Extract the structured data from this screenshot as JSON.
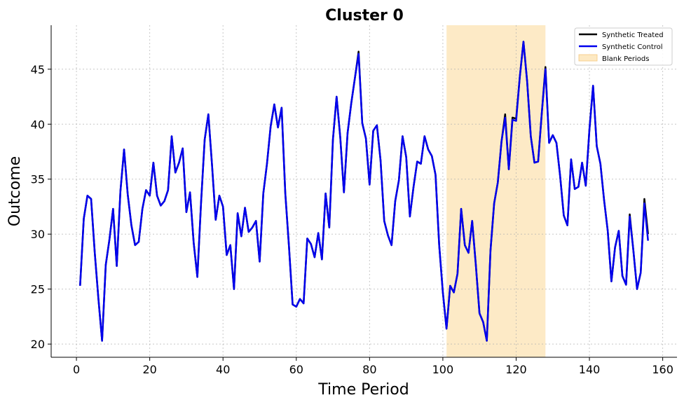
{
  "chart_data": {
    "type": "line",
    "title": "Cluster 0",
    "xlabel": "Time Period",
    "ylabel": "Outcome",
    "xlim": [
      -6.9,
      163.9
    ],
    "ylim": [
      18.8,
      49.0
    ],
    "xticks": [
      0,
      20,
      40,
      60,
      80,
      100,
      120,
      140,
      160
    ],
    "yticks": [
      20,
      25,
      30,
      35,
      40,
      45
    ],
    "grid": true,
    "legend_position": "top-right",
    "shaded_region": {
      "label": "Blank Periods",
      "x_start": 101,
      "x_end": 128,
      "color": "#fde9c3"
    },
    "x": [
      1,
      2,
      3,
      4,
      5,
      6,
      7,
      8,
      9,
      10,
      11,
      12,
      13,
      14,
      15,
      16,
      17,
      18,
      19,
      20,
      21,
      22,
      23,
      24,
      25,
      26,
      27,
      28,
      29,
      30,
      31,
      32,
      33,
      34,
      35,
      36,
      37,
      38,
      39,
      40,
      41,
      42,
      43,
      44,
      45,
      46,
      47,
      48,
      49,
      50,
      51,
      52,
      53,
      54,
      55,
      56,
      57,
      58,
      59,
      60,
      61,
      62,
      63,
      64,
      65,
      66,
      67,
      68,
      69,
      70,
      71,
      72,
      73,
      74,
      75,
      76,
      77,
      78,
      79,
      80,
      81,
      82,
      83,
      84,
      85,
      86,
      87,
      88,
      89,
      90,
      91,
      92,
      93,
      94,
      95,
      96,
      97,
      98,
      99,
      100,
      101,
      102,
      103,
      104,
      105,
      106,
      107,
      108,
      109,
      110,
      111,
      112,
      113,
      114,
      115,
      116,
      117,
      118,
      119,
      120,
      121,
      122,
      123,
      124,
      125,
      126,
      127,
      128,
      129,
      130,
      131,
      132,
      133,
      134,
      135,
      136,
      137,
      138,
      139,
      140,
      141,
      142,
      143,
      144,
      145,
      146,
      147,
      148,
      149,
      150,
      151,
      152,
      153,
      154,
      155,
      156
    ],
    "series": [
      {
        "name": "Synthetic Treated",
        "color": "#000000",
        "values": [
          25.3,
          31.4,
          33.5,
          33.2,
          28.3,
          24.1,
          20.3,
          27.2,
          29.5,
          32.3,
          27.1,
          33.9,
          37.7,
          33.6,
          30.8,
          29.0,
          29.3,
          32.3,
          34.0,
          33.5,
          36.5,
          33.5,
          32.6,
          33.0,
          34.0,
          38.9,
          35.6,
          36.5,
          37.8,
          32.0,
          33.8,
          29.2,
          26.1,
          32.8,
          38.6,
          40.9,
          36.3,
          31.3,
          33.5,
          32.5,
          28.1,
          29.0,
          25.0,
          31.9,
          29.8,
          32.4,
          30.2,
          30.6,
          31.2,
          27.5,
          33.7,
          36.4,
          39.8,
          41.8,
          39.7,
          41.5,
          33.7,
          28.9,
          23.6,
          23.4,
          24.1,
          23.7,
          29.6,
          29.1,
          27.9,
          30.1,
          27.7,
          33.7,
          30.6,
          38.6,
          42.5,
          38.8,
          33.8,
          39.2,
          41.9,
          44.2,
          46.6,
          40.1,
          38.7,
          34.5,
          39.4,
          39.9,
          36.7,
          31.2,
          29.9,
          29.0,
          33.0,
          34.9,
          38.9,
          37.0,
          31.6,
          34.3,
          36.6,
          36.4,
          38.9,
          37.7,
          37.1,
          35.4,
          29.0,
          24.7,
          21.4,
          25.3,
          24.7,
          26.4,
          32.3,
          29.0,
          28.3,
          31.2,
          27.2,
          22.8,
          22.0,
          20.3,
          28.5,
          32.8,
          34.7,
          38.4,
          40.9,
          35.9,
          40.6,
          40.5,
          44.3,
          47.5,
          43.9,
          38.9,
          36.5,
          36.6,
          41.0,
          45.2,
          38.3,
          39.0,
          38.3,
          35.3,
          31.7,
          30.8,
          36.8,
          34.1,
          34.3,
          36.5,
          34.4,
          39.5,
          43.5,
          38.0,
          36.4,
          33.1,
          30.3,
          25.7,
          28.8,
          30.3,
          26.2,
          25.4,
          31.8,
          28.5,
          25.0,
          26.5,
          33.2,
          30.0
        ]
      },
      {
        "name": "Synthetic Control",
        "color": "#0000ee",
        "values": [
          25.3,
          31.4,
          33.5,
          33.2,
          28.3,
          24.1,
          20.3,
          27.2,
          29.5,
          32.3,
          27.1,
          33.9,
          37.7,
          33.6,
          30.8,
          29.0,
          29.3,
          32.3,
          34.0,
          33.5,
          36.5,
          33.5,
          32.6,
          33.0,
          34.0,
          38.9,
          35.6,
          36.5,
          37.8,
          32.0,
          33.8,
          29.2,
          26.1,
          32.8,
          38.6,
          40.9,
          36.3,
          31.3,
          33.5,
          32.5,
          28.1,
          29.0,
          25.0,
          31.9,
          29.8,
          32.4,
          30.2,
          30.6,
          31.2,
          27.5,
          33.7,
          36.4,
          39.8,
          41.8,
          39.7,
          41.5,
          33.7,
          28.9,
          23.6,
          23.4,
          24.1,
          23.7,
          29.6,
          29.1,
          27.9,
          30.1,
          27.7,
          33.7,
          30.6,
          38.6,
          42.5,
          38.8,
          33.8,
          39.2,
          41.9,
          44.2,
          46.4,
          40.1,
          38.7,
          34.5,
          39.4,
          39.9,
          36.7,
          31.2,
          29.9,
          29.0,
          33.0,
          34.9,
          38.9,
          37.0,
          31.6,
          34.3,
          36.6,
          36.4,
          38.9,
          37.7,
          37.1,
          35.4,
          29.0,
          24.7,
          21.4,
          25.3,
          24.7,
          26.4,
          32.3,
          29.0,
          28.3,
          31.2,
          27.2,
          22.8,
          22.0,
          20.3,
          28.5,
          32.8,
          34.7,
          38.4,
          40.6,
          35.9,
          40.4,
          40.3,
          44.3,
          47.5,
          43.9,
          38.9,
          36.5,
          36.6,
          41.0,
          45.0,
          38.3,
          39.0,
          38.3,
          35.3,
          31.7,
          30.8,
          36.8,
          34.1,
          34.3,
          36.5,
          34.4,
          39.5,
          43.5,
          38.0,
          36.4,
          33.1,
          30.3,
          25.7,
          28.8,
          30.3,
          26.2,
          25.4,
          31.6,
          28.5,
          25.0,
          26.5,
          32.8,
          29.4
        ]
      }
    ]
  }
}
